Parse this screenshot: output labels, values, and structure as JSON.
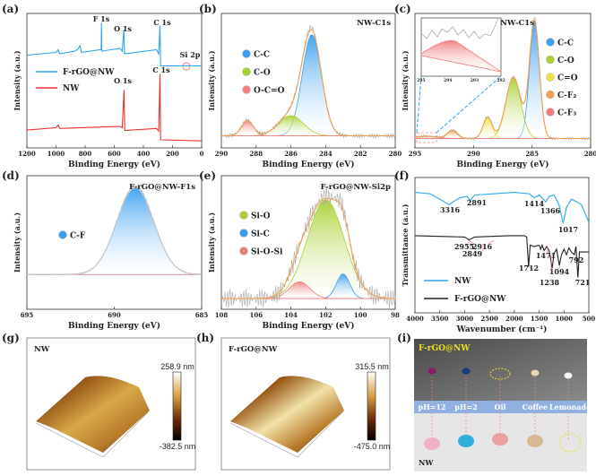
{
  "chart_data": [
    {
      "panel_label": "(a)",
      "type": "line",
      "xlabel": "Binding Energy (eV)",
      "ylabel": "Intensity (a.u.)",
      "xlim": [
        1200,
        0
      ],
      "xticks": [
        1200,
        1000,
        800,
        600,
        400,
        200,
        0
      ],
      "series": [
        {
          "name": "F-rGO@NW",
          "color": "#2aa6ee",
          "points": [
            [
              1200,
              6.9
            ],
            [
              1000,
              7.1
            ],
            [
              985,
              7.3
            ],
            [
              975,
              7.0
            ],
            [
              870,
              7.2
            ],
            [
              850,
              7.35
            ],
            [
              835,
              7.6
            ],
            [
              825,
              7.1
            ],
            [
              700,
              7.3
            ],
            [
              690,
              7.3
            ],
            [
              688,
              9.3
            ],
            [
              686,
              7.2
            ],
            [
              560,
              7.4
            ],
            [
              545,
              7.2
            ],
            [
              535,
              8.8
            ],
            [
              530,
              7.0
            ],
            [
              310,
              7.3
            ],
            [
              295,
              7.0
            ],
            [
              286,
              9.1
            ],
            [
              282,
              6.1
            ],
            [
              0,
              6.1
            ]
          ]
        },
        {
          "name": "NW",
          "color": "#f03030",
          "points": [
            [
              1200,
              1.33
            ],
            [
              1000,
              1.5
            ],
            [
              985,
              1.7
            ],
            [
              975,
              1.45
            ],
            [
              560,
              1.6
            ],
            [
              545,
              1.5
            ],
            [
              533,
              4.3
            ],
            [
              528,
              1.3
            ],
            [
              310,
              1.45
            ],
            [
              295,
              1.25
            ],
            [
              286,
              5.5
            ],
            [
              282,
              0.6
            ],
            [
              0,
              0.53
            ]
          ]
        }
      ],
      "annotations": [
        {
          "text": "F 1s",
          "x": 688,
          "series": "F-rGO@NW"
        },
        {
          "text": "O 1s",
          "x": 532,
          "series": "F-rGO@NW"
        },
        {
          "text": "C 1s",
          "x": 285,
          "series": "F-rGO@NW"
        },
        {
          "text": "Si 2p",
          "x": 100,
          "series": "F-rGO@NW"
        },
        {
          "text": "O 1s",
          "x": 532,
          "series": "NW"
        },
        {
          "text": "C 1s",
          "x": 285,
          "series": "NW"
        }
      ]
    },
    {
      "panel_label": "(b)",
      "type": "area",
      "title": "NW-C1s",
      "xlabel": "Binding Energy (eV)",
      "ylabel": "Intensity (a.u.)",
      "xlim": [
        290,
        280
      ],
      "xticks": [
        290,
        288,
        286,
        284,
        282,
        280
      ],
      "components": [
        {
          "name": "C-C",
          "center": 284.8,
          "fwhm": 1.3,
          "height": 1.0,
          "color": "#3a9ff0"
        },
        {
          "name": "C-O",
          "center": 286.0,
          "fwhm": 1.7,
          "height": 0.2,
          "color": "#a8d030"
        },
        {
          "name": "O-C=O",
          "center": 288.5,
          "fwhm": 0.8,
          "height": 0.15,
          "color": "#f08080"
        }
      ],
      "envelope_color": "#f0a050"
    },
    {
      "panel_label": "(c)",
      "type": "area",
      "title": "F-rGO@NW-C1s",
      "xlabel": "Binding Energy (eV)",
      "ylabel": "Intensity (a.u.)",
      "xlim": [
        295,
        280
      ],
      "xticks": [
        295,
        290,
        285,
        280
      ],
      "inset_xticks": [
        295,
        294,
        293,
        292
      ],
      "components": [
        {
          "name": "C-C",
          "center": 284.8,
          "fwhm": 1.0,
          "height": 1.0,
          "color": "#3a9ff0"
        },
        {
          "name": "C-O",
          "center": 286.6,
          "fwhm": 1.5,
          "height": 0.52,
          "color": "#a8d030"
        },
        {
          "name": "C=O",
          "center": 288.8,
          "fwhm": 0.9,
          "height": 0.18,
          "color": "#f0e040"
        },
        {
          "name": "C-F₂",
          "center": 291.8,
          "fwhm": 1.0,
          "height": 0.07,
          "color": "#f0a050"
        },
        {
          "name": "C-F₃",
          "center": 294.0,
          "fwhm": 2.0,
          "height": 0.02,
          "color": "#f08080"
        }
      ],
      "envelope_color": "#f0a050"
    },
    {
      "panel_label": "(d)",
      "type": "area",
      "title": "F-rGO@NW-F1s",
      "xlabel": "Binding Energy (eV)",
      "ylabel": "Intensity (a.u.)",
      "xlim": [
        695,
        685
      ],
      "xticks": [
        695,
        690,
        685
      ],
      "components": [
        {
          "name": "C-F",
          "center": 688.8,
          "fwhm": 2.5,
          "height": 1.0,
          "color": "#3a9ff0"
        }
      ],
      "envelope_color": "#c8c8c8"
    },
    {
      "panel_label": "(e)",
      "type": "area",
      "title": "F-rGO@NW-Si2p",
      "xlabel": "Binding Energy (eV)",
      "ylabel": "Intensity (a.u.)",
      "xlim": [
        108,
        98
      ],
      "xticks": [
        108,
        106,
        104,
        102,
        100,
        98
      ],
      "components": [
        {
          "name": "Si-O",
          "center": 102.0,
          "fwhm": 2.5,
          "height": 1.0,
          "color": "#a8d030"
        },
        {
          "name": "Si-C",
          "center": 101.0,
          "fwhm": 0.9,
          "height": 0.25,
          "color": "#3a9ff0"
        },
        {
          "name": "Si-O-Si",
          "center": 103.5,
          "fwhm": 1.4,
          "height": 0.17,
          "color": "#f08080"
        }
      ],
      "envelope_color": "#f0a050"
    },
    {
      "panel_label": "(f)",
      "type": "line",
      "xlabel": "Wavenumber (cm⁻¹)",
      "ylabel": "Transmittance (a.u.)",
      "xlim": [
        4000,
        500
      ],
      "xticks": [
        4000,
        3500,
        3000,
        2500,
        2000,
        1500,
        1000,
        500
      ],
      "series": [
        {
          "name": "NW",
          "color": "#2aa6ee",
          "points": [
            [
              4000,
              8.9
            ],
            [
              3700,
              8.8
            ],
            [
              3500,
              8.4
            ],
            [
              3316,
              8.0
            ],
            [
              3100,
              8.5
            ],
            [
              2950,
              8.6
            ],
            [
              2891,
              8.3
            ],
            [
              2800,
              8.7
            ],
            [
              2000,
              8.9
            ],
            [
              1700,
              8.8
            ],
            [
              1600,
              8.5
            ],
            [
              1500,
              8.7
            ],
            [
              1414,
              8.4
            ],
            [
              1366,
              8.2
            ],
            [
              1300,
              8.6
            ],
            [
              1200,
              8.7
            ],
            [
              1100,
              8.0
            ],
            [
              1017,
              6.6
            ],
            [
              950,
              7.8
            ],
            [
              850,
              8.4
            ],
            [
              792,
              8.3
            ],
            [
              650,
              8.0
            ],
            [
              500,
              6.7
            ]
          ]
        },
        {
          "name": "F-rGO@NW",
          "color": "#222222",
          "points": [
            [
              4000,
              5.7
            ],
            [
              3000,
              5.6
            ],
            [
              2955,
              5.5
            ],
            [
              2916,
              5.4
            ],
            [
              2849,
              5.5
            ],
            [
              2800,
              5.6
            ],
            [
              2100,
              5.7
            ],
            [
              1800,
              5.7
            ],
            [
              1750,
              5.6
            ],
            [
              1712,
              3.4
            ],
            [
              1680,
              5.0
            ],
            [
              1600,
              4.9
            ],
            [
              1500,
              5.0
            ],
            [
              1471,
              4.7
            ],
            [
              1440,
              5.0
            ],
            [
              1400,
              4.6
            ],
            [
              1350,
              4.9
            ],
            [
              1300,
              4.6
            ],
            [
              1238,
              3.3
            ],
            [
              1200,
              4.4
            ],
            [
              1150,
              4.7
            ],
            [
              1094,
              3.5
            ],
            [
              1050,
              4.3
            ],
            [
              1000,
              4.7
            ],
            [
              950,
              4.3
            ],
            [
              900,
              4.8
            ],
            [
              850,
              4.5
            ],
            [
              792,
              4.3
            ],
            [
              760,
              4.9
            ],
            [
              721,
              2.6
            ],
            [
              690,
              4.5
            ],
            [
              600,
              4.5
            ],
            [
              500,
              4.5
            ]
          ]
        }
      ],
      "annotations": [
        "3316",
        "2891",
        "1414",
        "1366",
        "1017",
        "2955",
        "2916",
        "2849",
        "1712",
        "1471",
        "1238",
        "1094",
        "792",
        "721"
      ]
    }
  ],
  "afm_images": [
    {
      "panel_label": "(g)",
      "sample": "NW",
      "max_label": "258.9 nm",
      "min_label": "-382.5 nm"
    },
    {
      "panel_label": "(h)",
      "sample": "F-rGO@NW",
      "max_label": "315.5 nm",
      "min_label": "-475.0 nm"
    }
  ],
  "photo": {
    "panel_label": "(i)",
    "top_sample": "F-rGO@NW",
    "bottom_sample": "NW",
    "liquids": [
      "pH=12",
      "pH=2",
      "Oil",
      "Coffee",
      "Lemonade"
    ]
  }
}
